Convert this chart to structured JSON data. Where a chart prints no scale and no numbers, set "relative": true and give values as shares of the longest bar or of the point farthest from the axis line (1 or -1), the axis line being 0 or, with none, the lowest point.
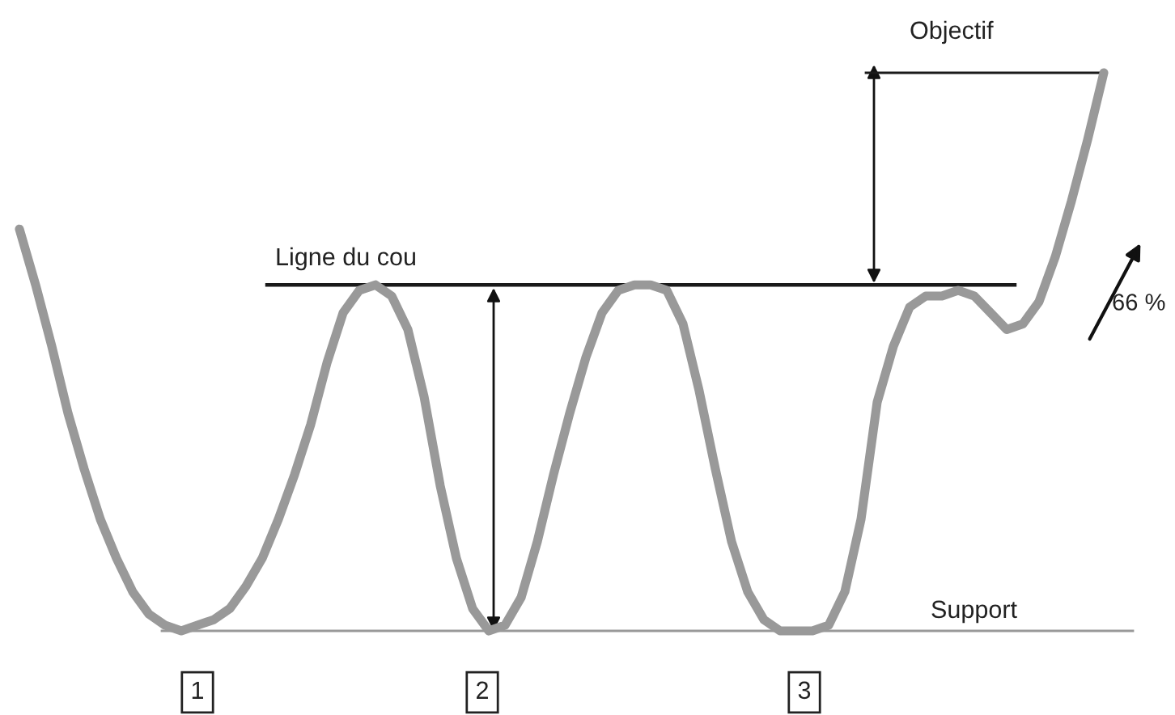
{
  "chart_data": {
    "type": "line",
    "relative": true,
    "categories": [
      null,
      null,
      null,
      null,
      null,
      null,
      null,
      null,
      null,
      null,
      null,
      null,
      null,
      null,
      null,
      null,
      null,
      null,
      null,
      null,
      null,
      null,
      null,
      null,
      null,
      null,
      null,
      null,
      null,
      null,
      null,
      null,
      null,
      null,
      null,
      null,
      null,
      null,
      null,
      null,
      null,
      null,
      null,
      null,
      null,
      null,
      null,
      null,
      null,
      null,
      null,
      null,
      null,
      null,
      null,
      null,
      null,
      null,
      null,
      null,
      null,
      null,
      null,
      null,
      null,
      null,
      null,
      null
    ],
    "series": [
      {
        "color": "#999999",
        "values": [
          0.72,
          0.62,
          0.51,
          0.39,
          0.29,
          0.2,
          0.13,
          0.07,
          0.03,
          0.01,
          0,
          0.01,
          0.02,
          0.04,
          0.08,
          0.13,
          0.2,
          0.28,
          0.37,
          0.48,
          0.57,
          0.61,
          0.62,
          0.6,
          0.54,
          0.42,
          0.26,
          0.13,
          0.04,
          0.0,
          0.01,
          0.06,
          0.16,
          0.28,
          0.39,
          0.49,
          0.57,
          0.61,
          0.62,
          0.62,
          0.61,
          0.55,
          0.43,
          0.29,
          0.16,
          0.07,
          0.02,
          0.0,
          0,
          0,
          0.01,
          0.07,
          0.2,
          0.41,
          0.51,
          0.58,
          0.6,
          0.6,
          0.61,
          0.6,
          0.57,
          0.54,
          0.55,
          0.59,
          0.67,
          0.77,
          0.88,
          1.0
        ]
      }
    ],
    "ref_lines": [
      {
        "axis": "y",
        "value": 0.62,
        "label": "Ligne du cou",
        "color": "#1a1a1a"
      },
      {
        "axis": "y",
        "value": 0,
        "label": "Support",
        "color": "#999999"
      },
      {
        "axis": "y",
        "value": 1.0,
        "label": "Objectif",
        "color": "#1a1a1a"
      }
    ],
    "annotations": [
      "66 %",
      "1",
      "2",
      "3"
    ],
    "legend": false,
    "marker": "none",
    "line_style": "solid"
  }
}
